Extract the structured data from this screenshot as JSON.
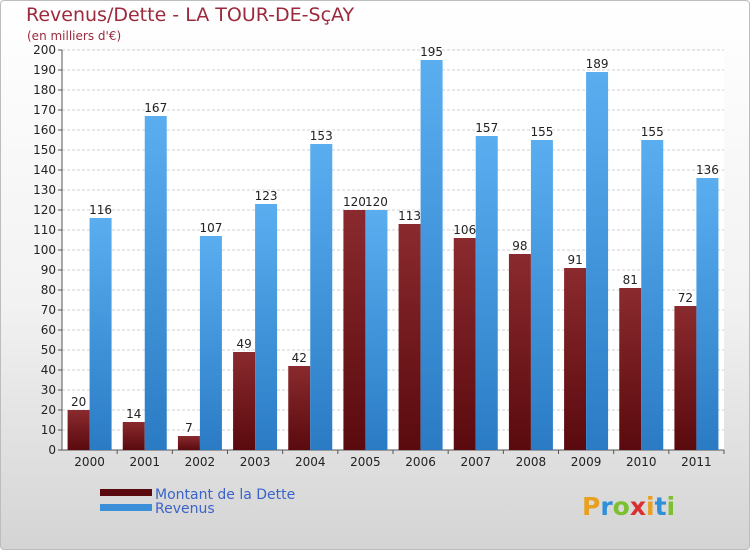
{
  "chart_data": {
    "type": "bar",
    "title": "Revenus/Dette - LA TOUR-DE-SçAY",
    "subtitle": "(en milliers d'€)",
    "categories": [
      "2000",
      "2001",
      "2002",
      "2003",
      "2004",
      "2005",
      "2006",
      "2007",
      "2008",
      "2009",
      "2010",
      "2011"
    ],
    "series": [
      {
        "name": "Montant de la Dette",
        "color": "#7a1a1f",
        "values": [
          20,
          14,
          7,
          49,
          42,
          120,
          113,
          106,
          98,
          91,
          81,
          72
        ]
      },
      {
        "name": "Revenus",
        "color": "#3a8fd8",
        "values": [
          116,
          167,
          107,
          123,
          153,
          120,
          195,
          157,
          155,
          189,
          155,
          136
        ]
      }
    ],
    "ylim": [
      0,
      200
    ],
    "ytick_step": 10,
    "grid": true,
    "legend_position": "bottom-left"
  },
  "brand": {
    "letters": [
      "P",
      "r",
      "o",
      "x",
      "i",
      "t",
      "i"
    ],
    "colors": [
      "#e8a020",
      "#2f8fd8",
      "#7cbf2f",
      "#d83030",
      "#e8a020",
      "#2f8fd8",
      "#7cbf2f"
    ]
  }
}
